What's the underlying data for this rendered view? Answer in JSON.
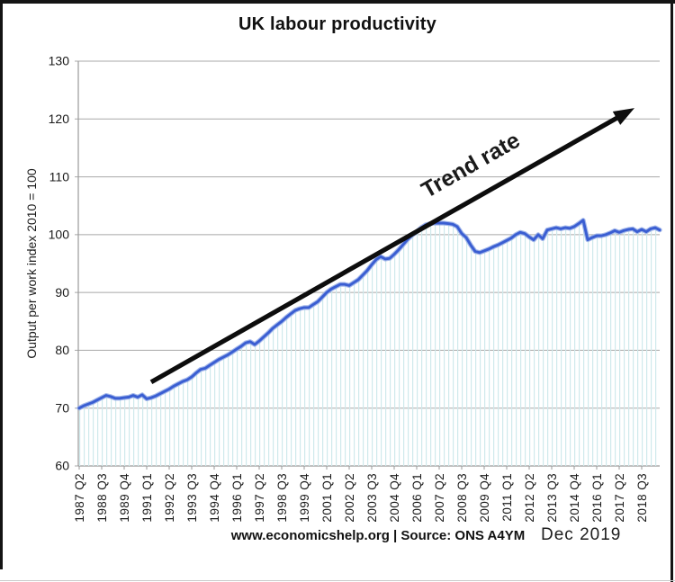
{
  "title": "UK labour productivity",
  "footer": {
    "credit": "www.economicshelp.org | Source: ONS A4YM",
    "date_label": "Dec 2019"
  },
  "colors": {
    "line": "#3a5ed2",
    "line_halo": "#93aae6",
    "area_stripe": "#cfe9ec",
    "grid": "#a8a8a8",
    "axis": "#9a9a9a",
    "arrow": "#0d0d0d",
    "tick_text": "#1a1a1a"
  },
  "chart_data": {
    "type": "line",
    "title": "UK labour productivity",
    "xlabel": "",
    "ylabel": "Output per work index 2010 = 100",
    "ylim": [
      60,
      130
    ],
    "yticks": [
      60,
      70,
      80,
      90,
      100,
      110,
      120,
      130
    ],
    "grid": "horizontal",
    "series_name": "UK output per worker index",
    "frequency": "quarterly",
    "start_quarter": "1987 Q2",
    "end_quarter": "2019 Q3",
    "x_tick_labels": [
      "1987 Q2",
      "1988 Q3",
      "1989 Q4",
      "1991 Q1",
      "1992 Q2",
      "1993 Q3",
      "1994 Q4",
      "1996 Q1",
      "1997 Q2",
      "1998 Q3",
      "1999 Q4",
      "2001 Q1",
      "2002 Q2",
      "2003 Q3",
      "2004 Q4",
      "2006 Q1",
      "2007 Q2",
      "2008 Q3",
      "2009 Q4",
      "2011 Q1",
      "2012 Q2",
      "2013 Q3",
      "2014 Q4",
      "2016 Q1",
      "2017 Q2",
      "2018 Q3"
    ],
    "x_tick_indices": [
      0,
      5,
      10,
      15,
      20,
      25,
      30,
      35,
      40,
      45,
      50,
      55,
      60,
      65,
      70,
      75,
      80,
      85,
      90,
      95,
      100,
      105,
      110,
      115,
      120,
      125
    ],
    "values": [
      70.0,
      70.4,
      70.7,
      71.0,
      71.4,
      71.8,
      72.2,
      72.0,
      71.7,
      71.7,
      71.8,
      71.9,
      72.2,
      71.9,
      72.3,
      71.6,
      71.8,
      72.1,
      72.5,
      72.9,
      73.3,
      73.8,
      74.2,
      74.6,
      74.9,
      75.4,
      76.1,
      76.7,
      76.9,
      77.4,
      77.9,
      78.4,
      78.8,
      79.2,
      79.7,
      80.2,
      80.7,
      81.3,
      81.5,
      81.0,
      81.6,
      82.3,
      83.0,
      83.8,
      84.4,
      85.0,
      85.7,
      86.3,
      86.9,
      87.2,
      87.4,
      87.4,
      87.9,
      88.4,
      89.2,
      90.0,
      90.6,
      91.0,
      91.4,
      91.4,
      91.2,
      91.7,
      92.2,
      93.0,
      93.8,
      94.8,
      95.7,
      96.2,
      95.8,
      95.9,
      96.6,
      97.4,
      98.3,
      99.2,
      99.9,
      100.5,
      101.2,
      101.7,
      101.9,
      102.0,
      102.0,
      102.0,
      101.9,
      101.8,
      101.4,
      100.2,
      99.5,
      98.2,
      97.1,
      96.9,
      97.2,
      97.5,
      97.9,
      98.2,
      98.6,
      99.0,
      99.4,
      100.0,
      100.4,
      100.2,
      99.6,
      99.1,
      100.0,
      99.3,
      100.8,
      101.0,
      101.2,
      101.0,
      101.2,
      101.1,
      101.4,
      101.9,
      102.5,
      99.1,
      99.5,
      99.8,
      99.8,
      100.0,
      100.3,
      100.7,
      100.4,
      100.7,
      100.9,
      101.0,
      100.5,
      100.9,
      100.5,
      101.0,
      101.2,
      100.8
    ],
    "trend_annotation": {
      "label": "Trend rate",
      "start": {
        "quarter_index": 16,
        "value": 74.5
      },
      "end": {
        "quarter_index": 123.4,
        "value": 121.9
      },
      "label_pos": {
        "quarter_index": 87.8,
        "value": 110.9
      },
      "rotation_deg": -29.6
    }
  }
}
